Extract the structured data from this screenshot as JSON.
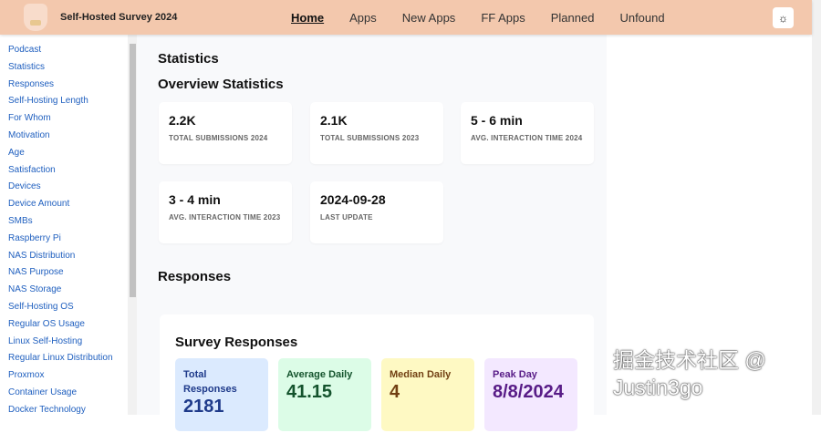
{
  "header": {
    "title": "Self-Hosted Survey 2024",
    "nav": [
      "Home",
      "Apps",
      "New Apps",
      "FF Apps",
      "Planned",
      "Unfound"
    ],
    "active": "Home",
    "theme_icon": "sun-icon"
  },
  "sidebar": {
    "items": [
      "Podcast",
      "Statistics",
      "Responses",
      "Self-Hosting Length",
      "For Whom",
      "Motivation",
      "Age",
      "Satisfaction",
      "Devices",
      "Device Amount",
      "SMBs",
      "Raspberry Pi",
      "NAS Distribution",
      "NAS Purpose",
      "NAS Storage",
      "Self-Hosting OS",
      "Regular OS Usage",
      "Linux Self-Hosting",
      "Regular Linux Distribution",
      "Proxmox",
      "Container Usage",
      "Docker Technology"
    ]
  },
  "main": {
    "heading": "Statistics",
    "overview_heading": "Overview Statistics",
    "cards": [
      {
        "value": "2.2K",
        "label": "TOTAL SUBMISSIONS 2024"
      },
      {
        "value": "2.1K",
        "label": "TOTAL SUBMISSIONS 2023"
      },
      {
        "value": "5 - 6 min",
        "label": "AVG. INTERACTION TIME 2024"
      },
      {
        "value": "3 - 4 min",
        "label": "AVG. INTERACTION TIME 2023"
      },
      {
        "value": "2024-09-28",
        "label": "LAST UPDATE"
      }
    ],
    "responses_heading": "Responses",
    "survey": {
      "title": "Survey Responses",
      "tiles": [
        {
          "label": "Total Responses",
          "value": "2181",
          "bg": "#dbeafe",
          "color": "#1e3a8a"
        },
        {
          "label": "Average Daily",
          "value": "41.15",
          "bg": "#dcfce7",
          "color": "#14532d"
        },
        {
          "label": "Median Daily",
          "value": "4",
          "bg": "#fef9c3",
          "color": "#713f12"
        },
        {
          "label": "Peak Day",
          "value": "8/8/2024",
          "bg": "#f3e8ff",
          "color": "#581c87"
        }
      ]
    }
  },
  "watermark": "掘金技术社区 @ Justin3go"
}
